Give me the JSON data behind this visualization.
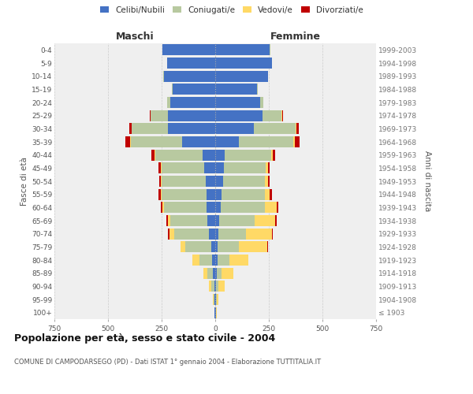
{
  "age_groups": [
    "100+",
    "95-99",
    "90-94",
    "85-89",
    "80-84",
    "75-79",
    "70-74",
    "65-69",
    "60-64",
    "55-59",
    "50-54",
    "45-49",
    "40-44",
    "35-39",
    "30-34",
    "25-29",
    "20-24",
    "15-19",
    "10-14",
    "5-9",
    "0-4"
  ],
  "birth_years": [
    "≤ 1903",
    "1904-1908",
    "1909-1913",
    "1914-1918",
    "1919-1923",
    "1924-1928",
    "1929-1933",
    "1934-1938",
    "1939-1943",
    "1944-1948",
    "1949-1953",
    "1954-1958",
    "1959-1963",
    "1964-1968",
    "1969-1973",
    "1974-1978",
    "1979-1983",
    "1984-1988",
    "1989-1993",
    "1994-1998",
    "1999-2003"
  ],
  "maschi": {
    "celibi": [
      2,
      3,
      5,
      10,
      15,
      20,
      30,
      35,
      40,
      40,
      45,
      50,
      60,
      155,
      220,
      220,
      210,
      200,
      240,
      225,
      245
    ],
    "coniugati": [
      2,
      5,
      15,
      25,
      60,
      120,
      160,
      175,
      200,
      210,
      205,
      200,
      220,
      240,
      170,
      80,
      15,
      3,
      2,
      1,
      1
    ],
    "vedovi": [
      1,
      3,
      10,
      20,
      30,
      20,
      25,
      10,
      5,
      5,
      3,
      3,
      2,
      2,
      1,
      1,
      0,
      0,
      0,
      0,
      0
    ],
    "divorziati": [
      0,
      0,
      0,
      0,
      0,
      3,
      5,
      8,
      8,
      8,
      8,
      10,
      15,
      22,
      10,
      5,
      0,
      0,
      0,
      0,
      0
    ]
  },
  "femmine": {
    "nubili": [
      2,
      3,
      5,
      8,
      10,
      12,
      15,
      20,
      25,
      30,
      35,
      40,
      45,
      110,
      180,
      220,
      210,
      195,
      245,
      265,
      255
    ],
    "coniugate": [
      3,
      5,
      10,
      20,
      55,
      100,
      130,
      165,
      205,
      200,
      195,
      195,
      215,
      255,
      195,
      90,
      15,
      3,
      2,
      1,
      1
    ],
    "vedove": [
      3,
      8,
      30,
      55,
      90,
      130,
      120,
      95,
      55,
      25,
      15,
      10,
      8,
      5,
      3,
      2,
      0,
      0,
      0,
      0,
      0
    ],
    "divorziate": [
      0,
      0,
      0,
      0,
      0,
      3,
      5,
      5,
      10,
      10,
      10,
      10,
      12,
      22,
      10,
      5,
      0,
      0,
      0,
      0,
      0
    ]
  },
  "colors": {
    "celibi": "#4472c4",
    "coniugati": "#b8c9a0",
    "vedovi": "#ffd966",
    "divorziati": "#c00000"
  },
  "xlim": 750,
  "title": "Popolazione per età, sesso e stato civile - 2004",
  "subtitle": "COMUNE DI CAMPODARSEGO (PD) - Dati ISTAT 1° gennaio 2004 - Elaborazione TUTTITALIA.IT",
  "ylabel_left": "Fasce di età",
  "ylabel_right": "Anni di nascita",
  "xlabel_maschi": "Maschi",
  "xlabel_femmine": "Femmine",
  "legend_labels": [
    "Celibi/Nubili",
    "Coniugati/e",
    "Vedovi/e",
    "Divorziati/e"
  ],
  "bg_color": "#ffffff",
  "plot_bg_color": "#efefef"
}
